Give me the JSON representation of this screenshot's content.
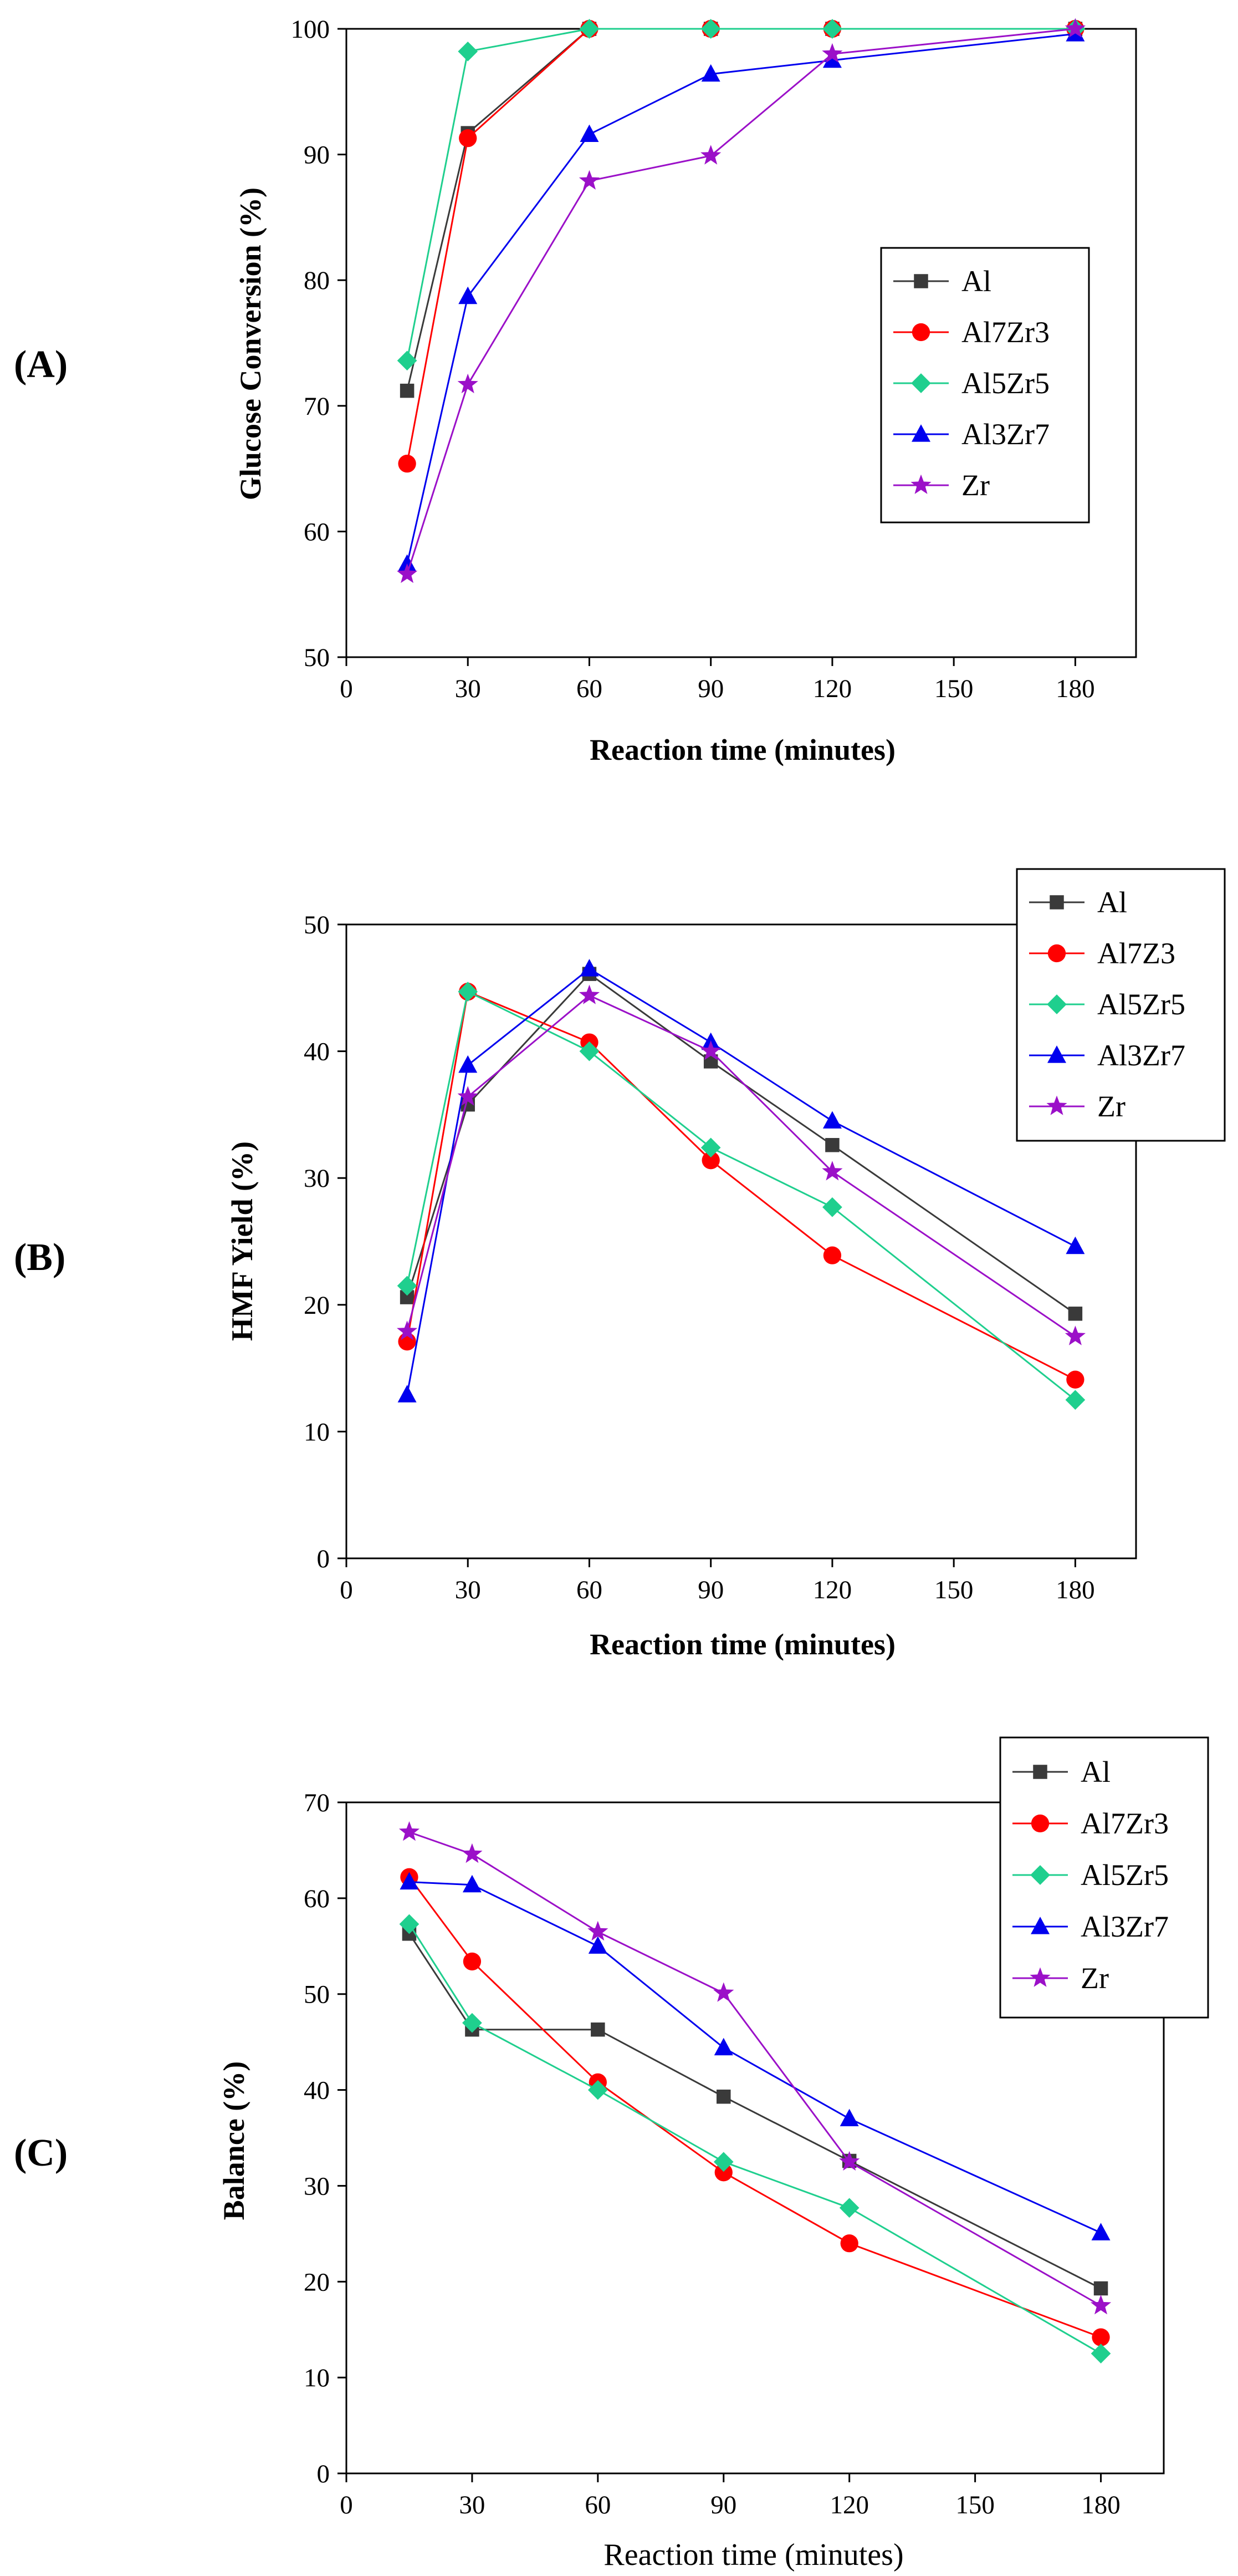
{
  "chart_data": [
    {
      "type": "line",
      "panel_label": "(A)",
      "xlabel": "Reaction time (minutes)",
      "ylabel": "Glucose Conversion (%)",
      "xlim": [
        0,
        195
      ],
      "ylim": [
        50,
        100
      ],
      "xticks": [
        0,
        30,
        60,
        90,
        120,
        150,
        180
      ],
      "yticks": [
        50,
        60,
        70,
        80,
        90,
        100
      ],
      "legend_position": "middle-right",
      "x": [
        15,
        30,
        60,
        90,
        120,
        180
      ],
      "series": [
        {
          "name": "Al",
          "color": "#3a3a3a",
          "marker": "square",
          "values": [
            71.2,
            91.7,
            100,
            100,
            100,
            100
          ]
        },
        {
          "name": "Al7Zr3",
          "color": "#ff0000",
          "marker": "circle",
          "values": [
            65.4,
            91.3,
            100,
            100,
            100,
            100
          ]
        },
        {
          "name": "Al5Zr5",
          "color": "#1fcf8e",
          "marker": "diamond",
          "values": [
            73.6,
            98.2,
            100,
            100,
            100,
            100
          ]
        },
        {
          "name": "Al3Zr7",
          "color": "#0000ee",
          "marker": "triangle",
          "values": [
            57.4,
            78.7,
            91.6,
            96.4,
            97.5,
            99.6
          ]
        },
        {
          "name": "Zr",
          "color": "#9b10c8",
          "marker": "star",
          "values": [
            56.6,
            71.7,
            87.9,
            89.9,
            98.0,
            100
          ]
        }
      ]
    },
    {
      "type": "line",
      "panel_label": "(B)",
      "xlabel": "Reaction time (minutes)",
      "ylabel": "HMF Yield (%)",
      "xlim": [
        0,
        195
      ],
      "ylim": [
        0,
        50
      ],
      "xticks": [
        0,
        30,
        60,
        90,
        120,
        150,
        180
      ],
      "yticks": [
        0,
        10,
        20,
        30,
        40,
        50
      ],
      "legend_position": "top-right",
      "x": [
        15,
        30,
        60,
        90,
        120,
        180
      ],
      "series": [
        {
          "name": "Al",
          "color": "#3a3a3a",
          "marker": "square",
          "values": [
            20.6,
            35.8,
            46.1,
            39.2,
            32.6,
            19.3
          ]
        },
        {
          "name": "Al7Z3",
          "color": "#ff0000",
          "marker": "circle",
          "values": [
            17.1,
            44.7,
            40.7,
            31.4,
            23.9,
            14.1
          ]
        },
        {
          "name": "Al5Zr5",
          "color": "#1fcf8e",
          "marker": "diamond",
          "values": [
            21.5,
            44.7,
            40.0,
            32.4,
            27.7,
            12.5
          ]
        },
        {
          "name": "Al3Zr7",
          "color": "#0000ee",
          "marker": "triangle",
          "values": [
            12.9,
            38.9,
            46.5,
            40.7,
            34.5,
            24.6
          ]
        },
        {
          "name": "Zr",
          "color": "#9b10c8",
          "marker": "star",
          "values": [
            17.9,
            36.4,
            44.4,
            40.0,
            30.5,
            17.5
          ]
        }
      ]
    },
    {
      "type": "line",
      "panel_label": "(C)",
      "xlabel": "Reaction time (minutes)",
      "ylabel": "Balance (%)",
      "xlim": [
        0,
        195
      ],
      "ylim": [
        0,
        70
      ],
      "xticks": [
        0,
        30,
        60,
        90,
        120,
        150,
        180
      ],
      "yticks": [
        0,
        10,
        20,
        30,
        40,
        50,
        60,
        70
      ],
      "legend_position": "top-right",
      "x": [
        15,
        30,
        60,
        90,
        120,
        180
      ],
      "series": [
        {
          "name": "Al",
          "color": "#3a3a3a",
          "marker": "square",
          "values": [
            56.3,
            46.3,
            46.3,
            39.3,
            32.6,
            19.3
          ]
        },
        {
          "name": "Al7Zr3",
          "color": "#ff0000",
          "marker": "circle",
          "values": [
            62.2,
            53.4,
            40.8,
            31.4,
            24.0,
            14.2
          ]
        },
        {
          "name": "Al5Zr5",
          "color": "#1fcf8e",
          "marker": "diamond",
          "values": [
            57.3,
            47.0,
            40.0,
            32.5,
            27.7,
            12.5
          ]
        },
        {
          "name": "Al3Zr7",
          "color": "#0000ee",
          "marker": "triangle",
          "values": [
            61.7,
            61.4,
            55.0,
            44.4,
            37.0,
            25.1
          ]
        },
        {
          "name": "Zr",
          "color": "#9b10c8",
          "marker": "star",
          "values": [
            66.9,
            64.6,
            56.5,
            50.1,
            32.5,
            17.5
          ]
        }
      ]
    }
  ]
}
